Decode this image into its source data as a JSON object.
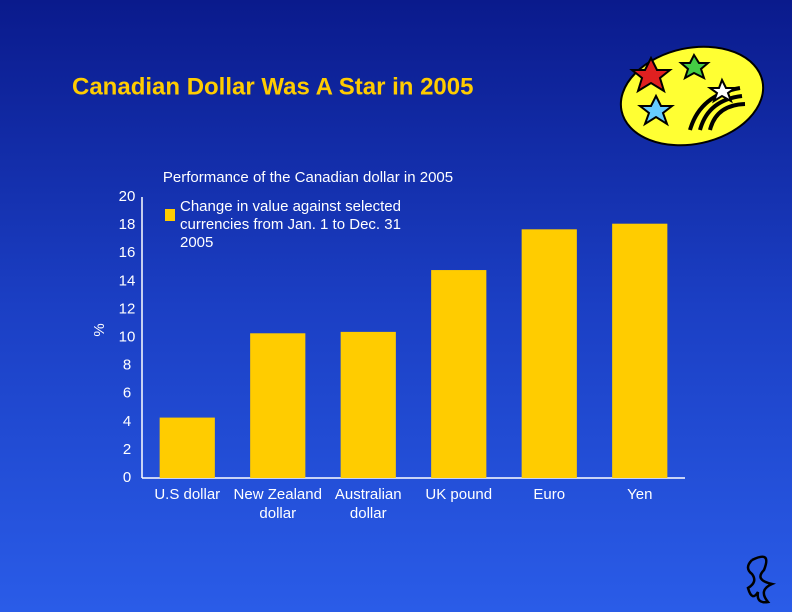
{
  "chart_data": {
    "type": "bar",
    "title": "Canadian Dollar Was A Star in 2005",
    "subtitle": "Performance of the Canadian dollar in 2005",
    "ylabel": "%",
    "categories": [
      "U.S dollar",
      "New Zealand dollar",
      "Australian dollar",
      "UK pound",
      "Euro",
      "Yen"
    ],
    "series": [
      {
        "name": "Change in value against selected currencies from Jan. 1 to Dec. 31 2005",
        "color": "#ffcc00",
        "values": [
          4.3,
          10.3,
          10.4,
          14.8,
          17.7,
          18.1
        ]
      }
    ],
    "ylim": [
      0,
      20
    ],
    "yticks": [
      0,
      2,
      4,
      6,
      8,
      10,
      12,
      14,
      16,
      18,
      20
    ],
    "grid": false
  }
}
